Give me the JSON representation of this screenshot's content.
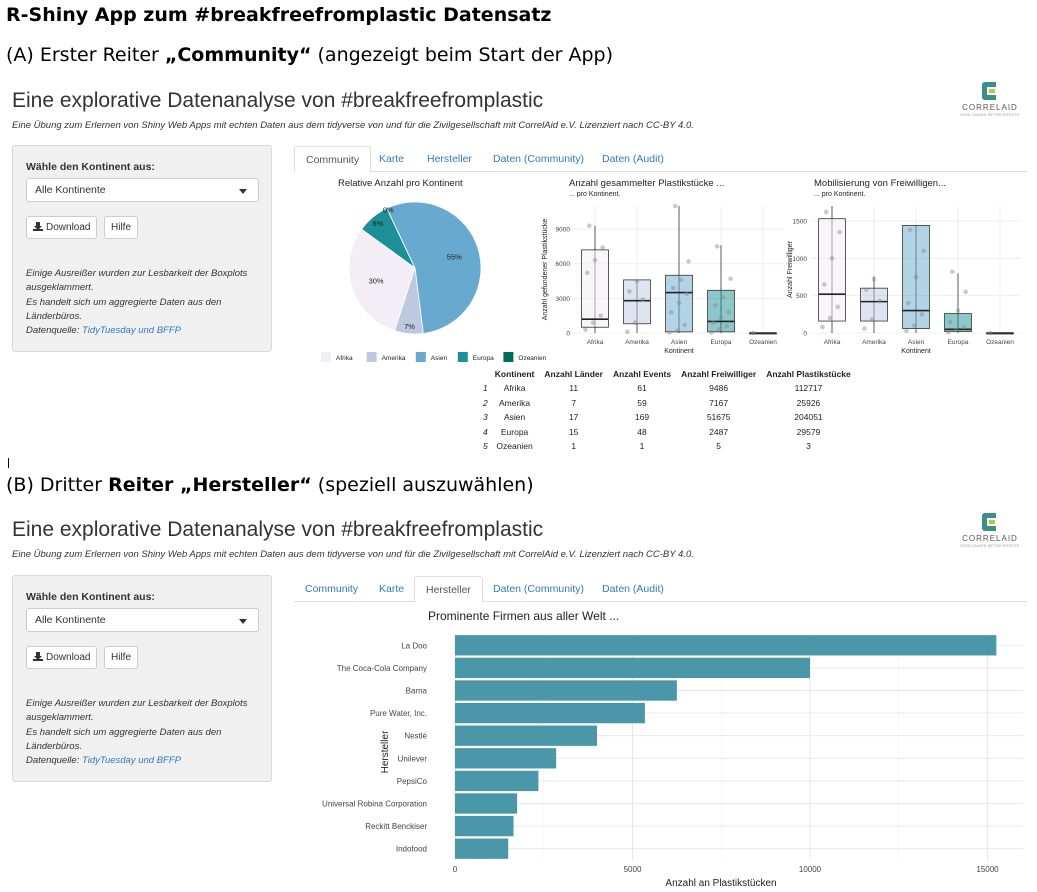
{
  "doc": {
    "title": "R-Shiny App zum #breakfreefromplastic Datensatz",
    "section_a_prefix": "(A) Erster Reiter ",
    "section_a_bold": "„Community“",
    "section_a_suffix": " (angezeigt beim Start der App)",
    "section_b_prefix": "(B) Dritter ",
    "section_b_bold": "Reiter „Hersteller“",
    "section_b_suffix": " (speziell auszuwählen)"
  },
  "app": {
    "title": "Eine explorative Datenanalyse von #breakfreefromplastic",
    "subtitle": "Eine Übung zum Erlernen von Shiny Web Apps mit echten Daten aus dem tidyverse von und für die Zivilgesellschaft mit CorrelAid e.V. Lizenziert nach CC-BY 4.0.",
    "logo_text": "CORRELAID",
    "logo_tagline": "GOOD CAUSES. BETTER EFFECTS.",
    "sidebar": {
      "label": "Wähle den Kontinent aus:",
      "select_value": "Alle Kontinente",
      "download_label": "Download",
      "help_label": "Hilfe",
      "note_1": "Einige Ausreißer wurden zur Lesbarkeit der Boxplots ausgeklammert.",
      "note_2": "Es handelt sich um aggregierte Daten aus den Länderbüros.",
      "source_label": "Datenquelle: ",
      "source_link": "TidyTuesday und BFFP"
    },
    "tabs": [
      "Community",
      "Karte",
      "Hersteller",
      "Daten (Community)",
      "Daten (Audit)"
    ]
  },
  "colors": {
    "Afrika": "#f3eef6",
    "Amerika": "#bdc9e1",
    "Asien": "#67a9cf",
    "Europa": "#1c9099",
    "Ozeanien": "#016c59",
    "bar": "#4b97aa"
  },
  "community": {
    "pie_title": "Relative Anzahl pro Kontinent",
    "box1_title": "Anzahl gesammelter Plastikstücke ...",
    "box1_sub": "... pro Kontinent.",
    "box1_ylabel": "Anzahl gefundener Plastikstücke",
    "box2_title": "Mobilisierung von Freiwilligen...",
    "box2_sub": "... pro Kontinent.",
    "box2_ylabel": "Anzahl Freiwilliger",
    "xlabel": "Kontinent",
    "table": {
      "headers": [
        "",
        "Kontinent",
        "Anzahl Länder",
        "Anzahl Events",
        "Anzahl Freiwilliger",
        "Anzahl Plastikstücke"
      ],
      "rows": [
        [
          "1",
          "Afrika",
          "11",
          "61",
          "9486",
          "112717"
        ],
        [
          "2",
          "Amerika",
          "7",
          "59",
          "7167",
          "25926"
        ],
        [
          "3",
          "Asien",
          "17",
          "169",
          "51675",
          "204051"
        ],
        [
          "4",
          "Europa",
          "15",
          "48",
          "2487",
          "29579"
        ],
        [
          "5",
          "Ozeanien",
          "1",
          "1",
          "5",
          "3"
        ]
      ]
    }
  },
  "hersteller": {
    "plot_title": "Prominente Firmen aus aller Welt ..."
  },
  "chart_data": [
    {
      "type": "pie",
      "title": "Relative Anzahl pro Kontinent",
      "categories": [
        "Afrika",
        "Amerika",
        "Asien",
        "Europa",
        "Ozeanien"
      ],
      "values": [
        30,
        7,
        55,
        8,
        0
      ],
      "labels": [
        "30%",
        "7%",
        "55%",
        "8%",
        "0%"
      ],
      "legend": "bottom"
    },
    {
      "type": "box",
      "title": "Anzahl gesammelter Plastikstücke ...",
      "subtitle": "... pro Kontinent.",
      "xlabel": "Kontinent",
      "ylabel": "Anzahl gefundener Plastikstücke",
      "ylim": [
        0,
        11000
      ],
      "yticks": [
        0,
        3000,
        6000,
        9000
      ],
      "categories": [
        "Afrika",
        "Amerika",
        "Asien",
        "Europa",
        "Ozeanien"
      ],
      "boxes": [
        {
          "min": 0,
          "q1": 500,
          "median": 1200,
          "q3": 7200,
          "max": 9300,
          "points": [
            300,
            900,
            1500,
            5200,
            6300,
            7400,
            9300
          ]
        },
        {
          "min": 0,
          "q1": 800,
          "median": 2800,
          "q3": 4600,
          "max": 4600,
          "points": [
            100,
            900,
            2900,
            3600,
            4500
          ]
        },
        {
          "min": 0,
          "q1": 100,
          "median": 3500,
          "q3": 5000,
          "max": 11000,
          "points": [
            50,
            200,
            700,
            1800,
            2600,
            3400,
            3900,
            4600,
            6200,
            11000
          ]
        },
        {
          "min": 0,
          "q1": 100,
          "median": 1000,
          "q3": 3700,
          "max": 7600,
          "points": [
            50,
            300,
            600,
            900,
            1300,
            1800,
            2400,
            3100,
            4700,
            7500
          ]
        },
        {
          "min": 0,
          "q1": 0,
          "median": 0,
          "q3": 0,
          "max": 0,
          "points": [
            0
          ]
        }
      ]
    },
    {
      "type": "box",
      "title": "Mobilisierung von Freiwilligen...",
      "subtitle": "... pro Kontinent.",
      "xlabel": "Kontinent",
      "ylabel": "Anzahl Freiwilliger",
      "ylim": [
        0,
        1700
      ],
      "yticks": [
        0,
        500,
        1000,
        1500
      ],
      "categories": [
        "Afrika",
        "Amerika",
        "Asien",
        "Europa",
        "Ozeanien"
      ],
      "boxes": [
        {
          "min": 0,
          "q1": 160,
          "median": 520,
          "q3": 1530,
          "max": 1700,
          "points": [
            80,
            200,
            350,
            650,
            1000,
            1350,
            1620
          ]
        },
        {
          "min": 0,
          "q1": 160,
          "median": 420,
          "q3": 600,
          "max": 760,
          "points": [
            60,
            180,
            430,
            580,
            720
          ]
        },
        {
          "min": 0,
          "q1": 60,
          "median": 300,
          "q3": 1440,
          "max": 1440,
          "points": [
            30,
            100,
            250,
            400,
            750,
            1100,
            1380
          ]
        },
        {
          "min": 0,
          "q1": 20,
          "median": 50,
          "q3": 260,
          "max": 800,
          "points": [
            10,
            40,
            80,
            150,
            300,
            550,
            820
          ]
        },
        {
          "min": 0,
          "q1": 0,
          "median": 0,
          "q3": 0,
          "max": 0,
          "points": [
            0
          ]
        }
      ]
    },
    {
      "type": "bar",
      "orientation": "horizontal",
      "title": "Prominente Firmen aus aller Welt ...",
      "xlabel": "Anzahl an Plastikstücken",
      "ylabel": "Hersteller",
      "xlim": [
        0,
        16000
      ],
      "xticks": [
        0,
        5000,
        10000,
        15000
      ],
      "categories": [
        "La Doo",
        "The Coca-Cola Company",
        "Barna",
        "Pure Water, Inc.",
        "Nestlé",
        "Unilever",
        "PepsiCo",
        "Universal Robina Corporation",
        "Reckitt Benckiser",
        "Indofood"
      ],
      "values": [
        15250,
        10000,
        6250,
        5350,
        4000,
        2850,
        2350,
        1750,
        1650,
        1500
      ]
    }
  ]
}
